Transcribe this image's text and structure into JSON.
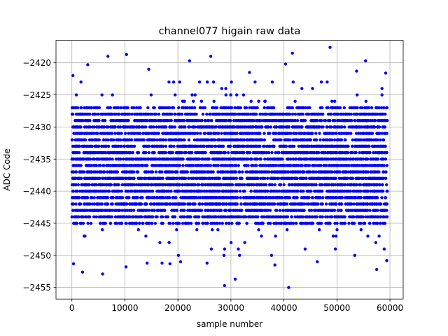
{
  "chart_data": {
    "type": "scatter",
    "title": "channel077 higain raw data",
    "xlabel": "sample number",
    "ylabel": "ADC Code",
    "xlim": [
      -3000,
      62500
    ],
    "ylim": [
      -2456.8,
      -2416.5
    ],
    "xticks": [
      0,
      10000,
      20000,
      30000,
      40000,
      50000,
      60000
    ],
    "yticks": [
      -2455,
      -2450,
      -2445,
      -2440,
      -2435,
      -2430,
      -2425,
      -2420
    ],
    "grid": true,
    "marker_color": "#0000ff",
    "marker": "circle",
    "series": [
      {
        "name": "",
        "n_samples": 60000,
        "x_range": [
          0,
          59500
        ],
        "dense_band": [
          -2445,
          -2427
        ],
        "typical_center": -2436,
        "sparse_tail_range": [
          -2450,
          -2423
        ],
        "outliers": [
          {
            "x": 28800,
            "y": -2454.7
          },
          {
            "x": 30800,
            "y": -2453.7
          },
          {
            "x": 40900,
            "y": -2455.0
          },
          {
            "x": 5800,
            "y": -2452.9
          },
          {
            "x": 2000,
            "y": -2452.6
          },
          {
            "x": 57500,
            "y": -2452.2
          },
          {
            "x": 300,
            "y": -2451.3
          },
          {
            "x": 10200,
            "y": -2451.8
          },
          {
            "x": 14200,
            "y": -2451.2
          },
          {
            "x": 17000,
            "y": -2451.2
          },
          {
            "x": 18500,
            "y": -2451.3
          },
          {
            "x": 20500,
            "y": -2451.0
          },
          {
            "x": 25500,
            "y": -2451.2
          },
          {
            "x": 38300,
            "y": -2451.5
          },
          {
            "x": 46300,
            "y": -2451.0
          },
          {
            "x": 59400,
            "y": -2450.8
          },
          {
            "x": 48700,
            "y": -2417.6
          },
          {
            "x": 10300,
            "y": -2418.7
          },
          {
            "x": 41600,
            "y": -2418.5
          },
          {
            "x": 6800,
            "y": -2419.0
          },
          {
            "x": 26200,
            "y": -2419.0
          },
          {
            "x": 22200,
            "y": -2419.7
          },
          {
            "x": 55400,
            "y": -2419.7
          },
          {
            "x": 40300,
            "y": -2420.2
          },
          {
            "x": 3000,
            "y": -2420.3
          },
          {
            "x": 200,
            "y": -2422.0
          },
          {
            "x": 59200,
            "y": -2421.6
          },
          {
            "x": 53700,
            "y": -2421.3
          },
          {
            "x": 14500,
            "y": -2421.0
          },
          {
            "x": 33500,
            "y": -2421.5
          }
        ]
      }
    ]
  }
}
